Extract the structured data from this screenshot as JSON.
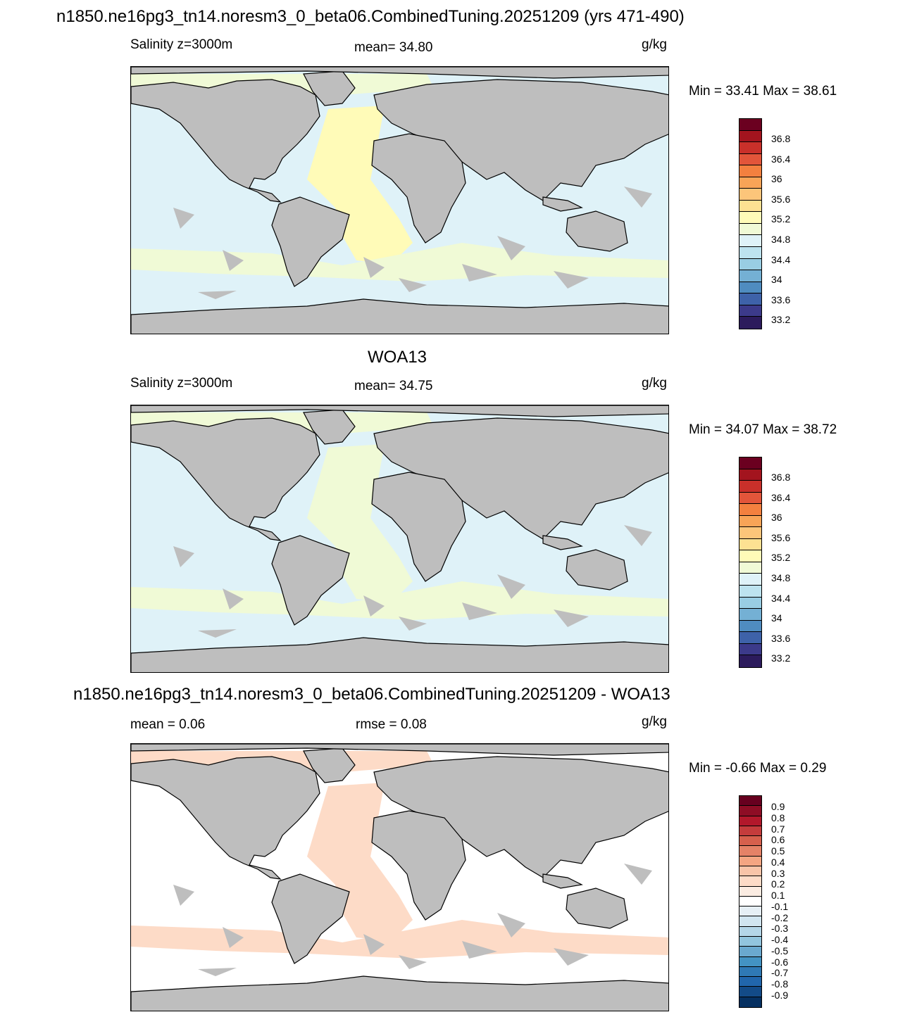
{
  "header": {
    "title": "n1850.ne16pg3_tn14.noresm3_0_beta06.CombinedTuning.20251209 (yrs 471-490)"
  },
  "panels": [
    {
      "id": "model",
      "left_label": "Salinity z=3000m",
      "center_label": "mean=  34.80",
      "right_label": "g/kg",
      "minmax": "Min =  33.41 Max =  38.61",
      "colorbar": {
        "colors": [
          "#6b0020",
          "#a3141e",
          "#c9302a",
          "#e2553a",
          "#f3803f",
          "#f8a457",
          "#fcc57a",
          "#fde192",
          "#fffbb8",
          "#f0fad6",
          "#dff2f8",
          "#bde3ef",
          "#99cde3",
          "#74b0d4",
          "#4f8cc0",
          "#3e62a9",
          "#3c3a8a",
          "#2c1b5c"
        ],
        "labels": [
          "36.8",
          "36.4",
          "36",
          "35.6",
          "35.2",
          "34.8",
          "34.4",
          "34",
          "33.6",
          "33.2"
        ]
      }
    },
    {
      "id": "obs",
      "heading": "WOA13",
      "left_label": "Salinity z=3000m",
      "center_label": "mean=  34.75",
      "right_label": "g/kg",
      "minmax": "Min =  34.07 Max =  38.72",
      "colorbar": {
        "colors": [
          "#6b0020",
          "#a3141e",
          "#c9302a",
          "#e2553a",
          "#f3803f",
          "#f8a457",
          "#fcc57a",
          "#fde192",
          "#fffbb8",
          "#f0fad6",
          "#dff2f8",
          "#bde3ef",
          "#99cde3",
          "#74b0d4",
          "#4f8cc0",
          "#3e62a9",
          "#3c3a8a",
          "#2c1b5c"
        ],
        "labels": [
          "36.8",
          "36.4",
          "36",
          "35.6",
          "35.2",
          "34.8",
          "34.4",
          "34",
          "33.6",
          "33.2"
        ]
      }
    },
    {
      "id": "diff",
      "heading": "n1850.ne16pg3_tn14.noresm3_0_beta06.CombinedTuning.20251209 - WOA13",
      "left_label": "mean =   0.06",
      "center_label": "rmse =   0.08",
      "right_label": "g/kg",
      "minmax": "Min =  -0.66 Max =   0.29",
      "colorbar": {
        "colors": [
          "#67001f",
          "#8e0d25",
          "#b2182b",
          "#c43c3c",
          "#d6604d",
          "#e58267",
          "#f4a582",
          "#f8c4a8",
          "#fddbc7",
          "#fbece2",
          "#ffffff",
          "#e6eff5",
          "#d1e5f0",
          "#b4d6e8",
          "#92c5de",
          "#6aa9cf",
          "#4393c3",
          "#2f79b5",
          "#2166ac",
          "#134b88",
          "#053061"
        ],
        "labels": [
          "0.9",
          "0.8",
          "0.7",
          "0.6",
          "0.5",
          "0.4",
          "0.3",
          "0.2",
          "0.1",
          "-0.1",
          "-0.2",
          "-0.3",
          "-0.4",
          "-0.5",
          "-0.6",
          "-0.7",
          "-0.8",
          "-0.9"
        ]
      }
    }
  ],
  "map_colors": {
    "land": "#bebebe",
    "model": {
      "ocean": "#dff2f8",
      "atlantic": "#fffbb8",
      "band": "#f0fad6"
    },
    "obs": {
      "ocean": "#dff2f8",
      "atlantic": "#f0fad6",
      "band": "#f0fad6"
    },
    "diff": {
      "ocean": "#ffffff",
      "atlantic": "#fddbc7",
      "band": "#fddbc7"
    }
  }
}
